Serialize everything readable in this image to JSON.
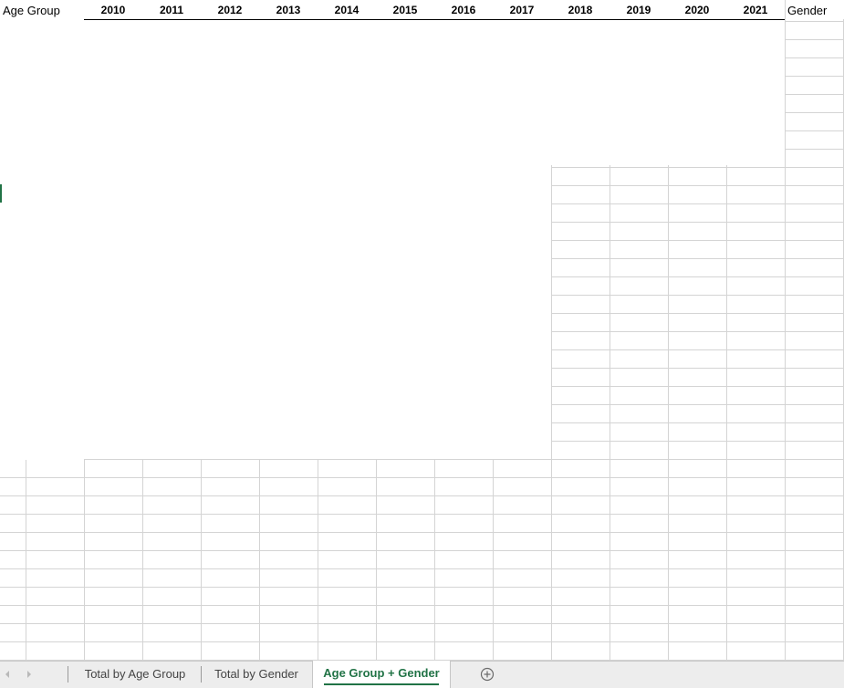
{
  "sheet": {
    "headers": {
      "age_group": "Age Group",
      "gender": "Gender",
      "years": [
        "2010",
        "2011",
        "2012",
        "2013",
        "2014",
        "2015",
        "2016",
        "2017",
        "2018",
        "2019",
        "2020",
        "2021"
      ]
    }
  },
  "tabs": [
    {
      "label": "Total by Age Group",
      "active": false
    },
    {
      "label": "Total by Gender",
      "active": false
    },
    {
      "label": "Age Group + Gender",
      "active": true
    }
  ],
  "tab_nav": {
    "prev_icon": "chevron-left-icon",
    "next_icon": "chevron-right-icon",
    "add_icon": "plus-circle-icon"
  },
  "colors": {
    "accent": "#217346",
    "gridline": "#d4d4d4",
    "tabbar_bg": "#ededed"
  }
}
